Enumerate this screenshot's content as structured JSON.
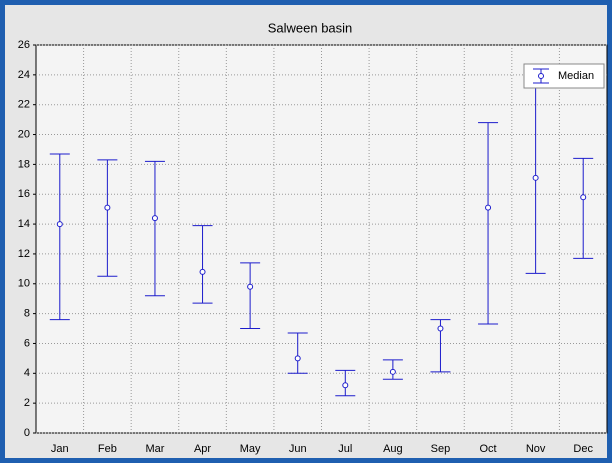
{
  "chart_data": {
    "type": "errorbar",
    "title": "Salween basin",
    "categories": [
      "Jan",
      "Feb",
      "Mar",
      "Apr",
      "May",
      "Jun",
      "Jul",
      "Aug",
      "Sep",
      "Oct",
      "Nov",
      "Dec"
    ],
    "series": [
      {
        "name": "Median",
        "color": "#1c1ccc",
        "values": [
          14.0,
          15.1,
          14.4,
          10.8,
          9.8,
          5.0,
          3.2,
          4.1,
          7.0,
          15.1,
          17.1,
          15.8
        ],
        "low": [
          7.6,
          10.5,
          9.2,
          8.7,
          7.0,
          4.0,
          2.5,
          3.6,
          4.1,
          7.3,
          10.7,
          11.7
        ],
        "high": [
          18.7,
          18.3,
          18.2,
          13.9,
          11.4,
          6.7,
          4.2,
          4.9,
          7.6,
          20.8,
          24.6,
          18.4
        ]
      }
    ],
    "ylim": [
      0,
      26
    ],
    "yticks": [
      0,
      2,
      4,
      6,
      8,
      10,
      12,
      14,
      16,
      18,
      20,
      22,
      24,
      26
    ],
    "grid": true,
    "legend": "upper right"
  }
}
